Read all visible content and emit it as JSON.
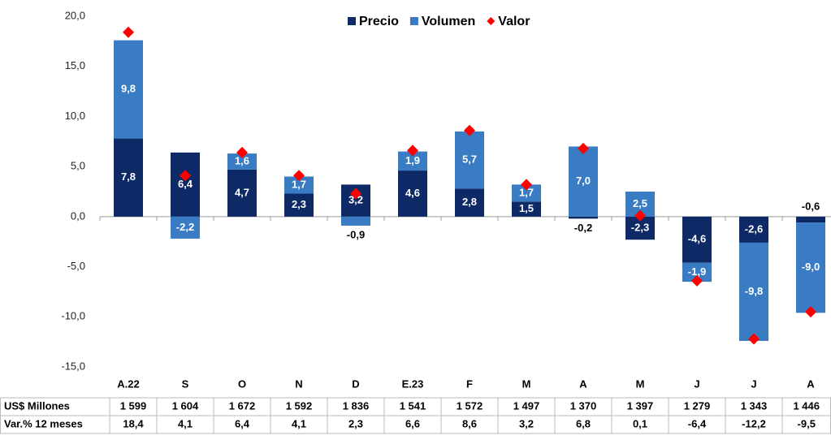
{
  "chart_data": {
    "type": "bar",
    "categories": [
      "A.22",
      "S",
      "O",
      "N",
      "D",
      "E.23",
      "F",
      "M",
      "A",
      "M",
      "J",
      "J",
      "A"
    ],
    "series": [
      {
        "name": "Precio",
        "color": "#0d2a66",
        "values": [
          7.8,
          6.4,
          4.7,
          2.3,
          3.2,
          4.6,
          2.8,
          1.5,
          -0.2,
          -2.3,
          -4.6,
          -2.6,
          -0.6
        ],
        "value_labels": [
          "7,8",
          "6,4",
          "4,7",
          "2,3",
          "3,2",
          "4,6",
          "2,8",
          "1,5",
          "-0,2",
          "-2,3",
          "-4,6",
          "-2,6",
          "-0,6"
        ]
      },
      {
        "name": "Volumen",
        "color": "#3a7cc4",
        "values": [
          9.8,
          -2.2,
          1.6,
          1.7,
          -0.9,
          1.9,
          5.7,
          1.7,
          7.0,
          2.5,
          -1.9,
          -9.8,
          -9.0
        ],
        "value_labels": [
          "9,8",
          "-2,2",
          "1,6",
          "1,7",
          "-0,9",
          "1,9",
          "5,7",
          "1,7",
          "7,0",
          "2,5",
          "-1,9",
          "-9,8",
          "-9,0"
        ]
      },
      {
        "name": "Valor",
        "color": "#ff0000",
        "marker": "diamond",
        "values": [
          18.4,
          4.1,
          6.4,
          4.1,
          2.3,
          6.6,
          8.6,
          3.2,
          6.8,
          0.1,
          -6.4,
          -12.2,
          -9.5
        ],
        "value_labels": [
          "18,4",
          "4,1",
          "6,4",
          "4,1",
          "2,3",
          "6,6",
          "8,6",
          "3,2",
          "6,8",
          "0,1",
          "-6,4",
          "-12,2",
          "-9,5"
        ]
      }
    ],
    "ylim": [
      -15,
      20
    ],
    "yticks": [
      {
        "value": -15,
        "label": "-15,0"
      },
      {
        "value": -10,
        "label": "-10,0"
      },
      {
        "value": -5,
        "label": "-5,0"
      },
      {
        "value": 0,
        "label": "0,0"
      },
      {
        "value": 5,
        "label": "5,0"
      },
      {
        "value": 10,
        "label": "10,0"
      },
      {
        "value": 15,
        "label": "15,0"
      },
      {
        "value": 20,
        "label": "20,0"
      }
    ],
    "legend": "top",
    "table": {
      "rows": [
        {
          "label": "US$ Millones",
          "cells": [
            "1 599",
            "1 604",
            "1 672",
            "1 592",
            "1 836",
            "1 541",
            "1 572",
            "1 497",
            "1 370",
            "1 397",
            "1 279",
            "1 343",
            "1 446"
          ]
        },
        {
          "label": "Var.% 12 meses"
        }
      ]
    }
  }
}
